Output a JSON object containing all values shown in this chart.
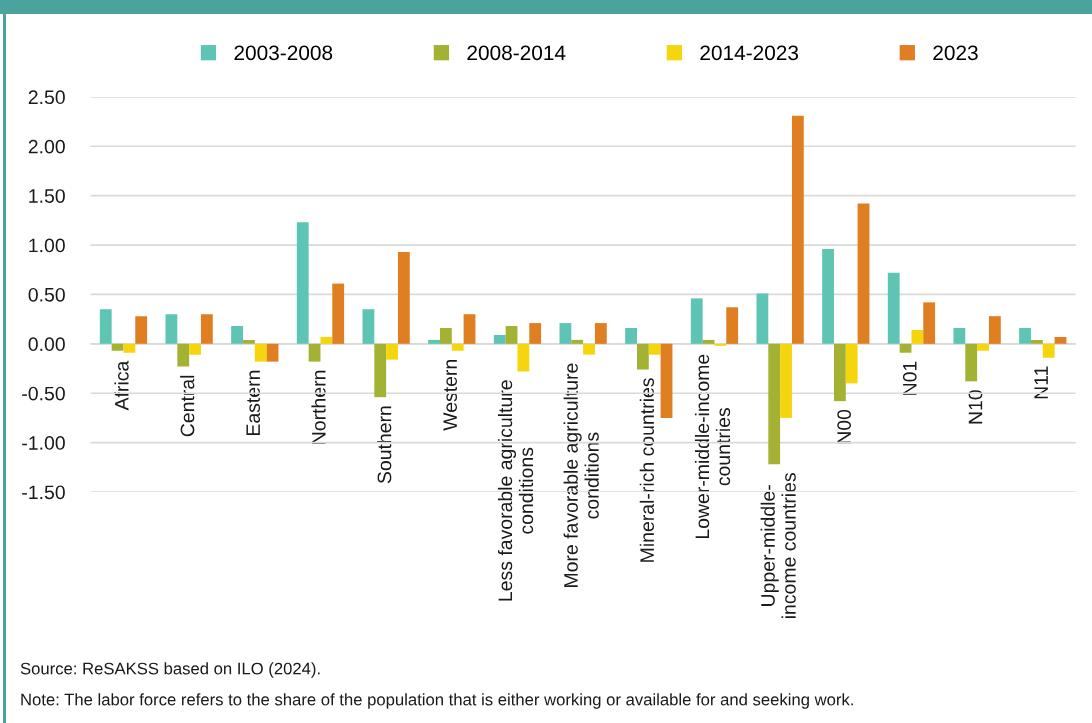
{
  "chart_data": {
    "type": "bar",
    "categories": [
      "Africa",
      "Central",
      "Eastern",
      "Northern",
      "Southern",
      "Western",
      "Less favorable agriculture\nconditions",
      "More favorable agriculture\nconditions",
      "Mineral-rich countries",
      "Lower-middle-income\ncountries",
      "Upper-middle-\nincome countries",
      "N00",
      "N01",
      "N10",
      "N11"
    ],
    "series": [
      {
        "name": "2003-2008",
        "color": "#5ec4b4",
        "values": [
          0.35,
          0.3,
          0.18,
          1.23,
          0.35,
          0.04,
          0.09,
          0.21,
          0.16,
          0.46,
          0.51,
          0.96,
          0.72,
          0.16,
          0.16
        ]
      },
      {
        "name": "2008-2014",
        "color": "#a3b232",
        "values": [
          -0.07,
          -0.23,
          0.04,
          -0.18,
          -0.54,
          0.16,
          0.18,
          0.04,
          -0.26,
          0.04,
          -1.22,
          -0.58,
          -0.09,
          -0.38,
          0.04
        ]
      },
      {
        "name": "2014-2023",
        "color": "#f5d60e",
        "values": [
          -0.09,
          -0.11,
          -0.18,
          0.07,
          -0.16,
          -0.07,
          -0.28,
          -0.11,
          -0.11,
          -0.02,
          -0.75,
          -0.4,
          0.14,
          -0.07,
          -0.14
        ]
      },
      {
        "name": "2023",
        "color": "#e07e22",
        "values": [
          0.28,
          0.3,
          -0.18,
          0.61,
          0.93,
          0.3,
          0.21,
          0.21,
          -0.75,
          0.37,
          2.31,
          1.42,
          0.42,
          0.28,
          0.07
        ]
      }
    ],
    "ylim": [
      -1.5,
      2.5
    ],
    "yticks": [
      {
        "value": -1.5,
        "label": "-1.50"
      },
      {
        "value": -1.0,
        "label": "-1.00"
      },
      {
        "value": -0.5,
        "label": "-0.50"
      },
      {
        "value": 0,
        "label": "0.00"
      },
      {
        "value": 0.5,
        "label": "0.50"
      },
      {
        "value": 1.0,
        "label": "1.00"
      },
      {
        "value": 1.5,
        "label": "1.50"
      },
      {
        "value": 2.0,
        "label": "2.00"
      },
      {
        "value": 2.5,
        "label": "2.50"
      }
    ],
    "grid": "y",
    "legend": "top",
    "annotations": [
      "Source: ReSAKSS based on ILO (2024).",
      "Note: The labor force refers to the share of the population that is either working or available for and seeking work."
    ]
  }
}
